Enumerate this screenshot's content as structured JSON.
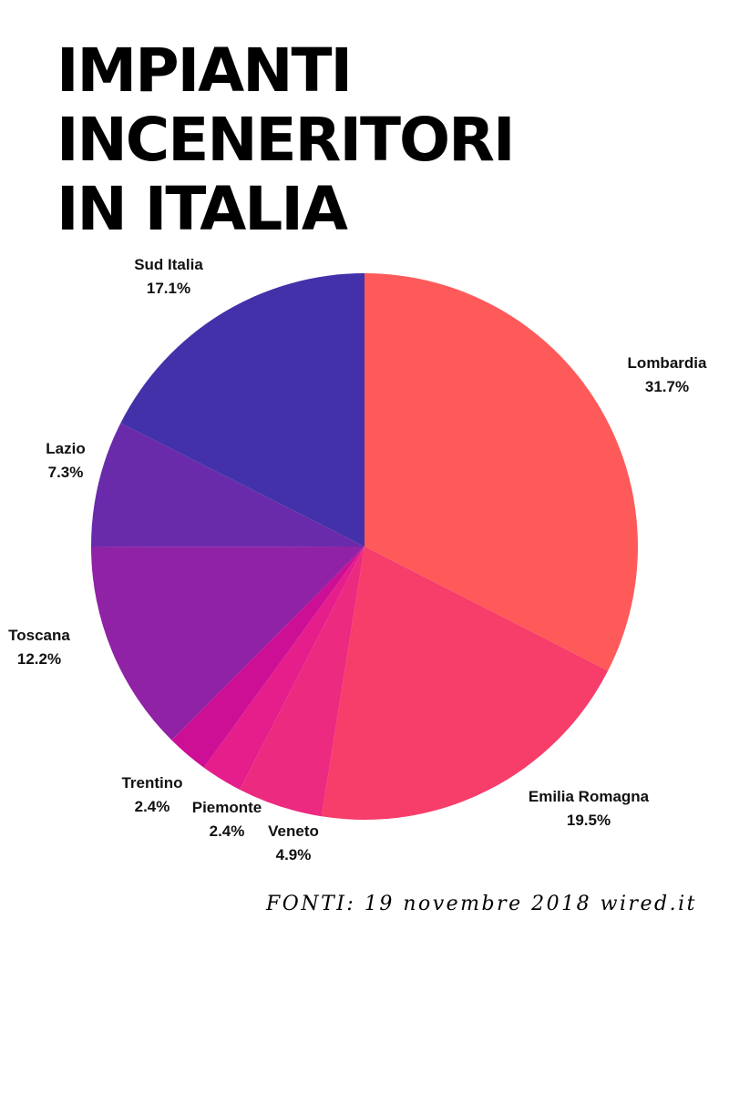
{
  "title_lines": [
    "IMPIANTI",
    "INCENERITORI",
    "IN ITALIA"
  ],
  "source_text": "FONTI: 19 novembre 2018 wired.it",
  "chart_data": {
    "type": "pie",
    "title": "IMPIANTI INCENERITORI IN ITALIA",
    "slices": [
      {
        "label": "Lombardia",
        "value": 31.7,
        "value_label": "31.7%",
        "color": "#FF5A5A"
      },
      {
        "label": "Emilia Romagna",
        "value": 19.5,
        "value_label": "19.5%",
        "color": "#F73D6A"
      },
      {
        "label": "Veneto",
        "value": 4.9,
        "value_label": "4.9%",
        "color": "#EC2A80"
      },
      {
        "label": "Piemonte",
        "value": 2.4,
        "value_label": "2.4%",
        "color": "#E51E8C"
      },
      {
        "label": "Trentino",
        "value": 2.4,
        "value_label": "2.4%",
        "color": "#CC0F95"
      },
      {
        "label": "Toscana",
        "value": 12.2,
        "value_label": "12.2%",
        "color": "#9022A5"
      },
      {
        "label": "Lazio",
        "value": 7.3,
        "value_label": "7.3%",
        "color": "#6A2BAA"
      },
      {
        "label": "Sud Italia",
        "value": 17.1,
        "value_label": "17.1%",
        "color": "#4331AA"
      }
    ]
  }
}
